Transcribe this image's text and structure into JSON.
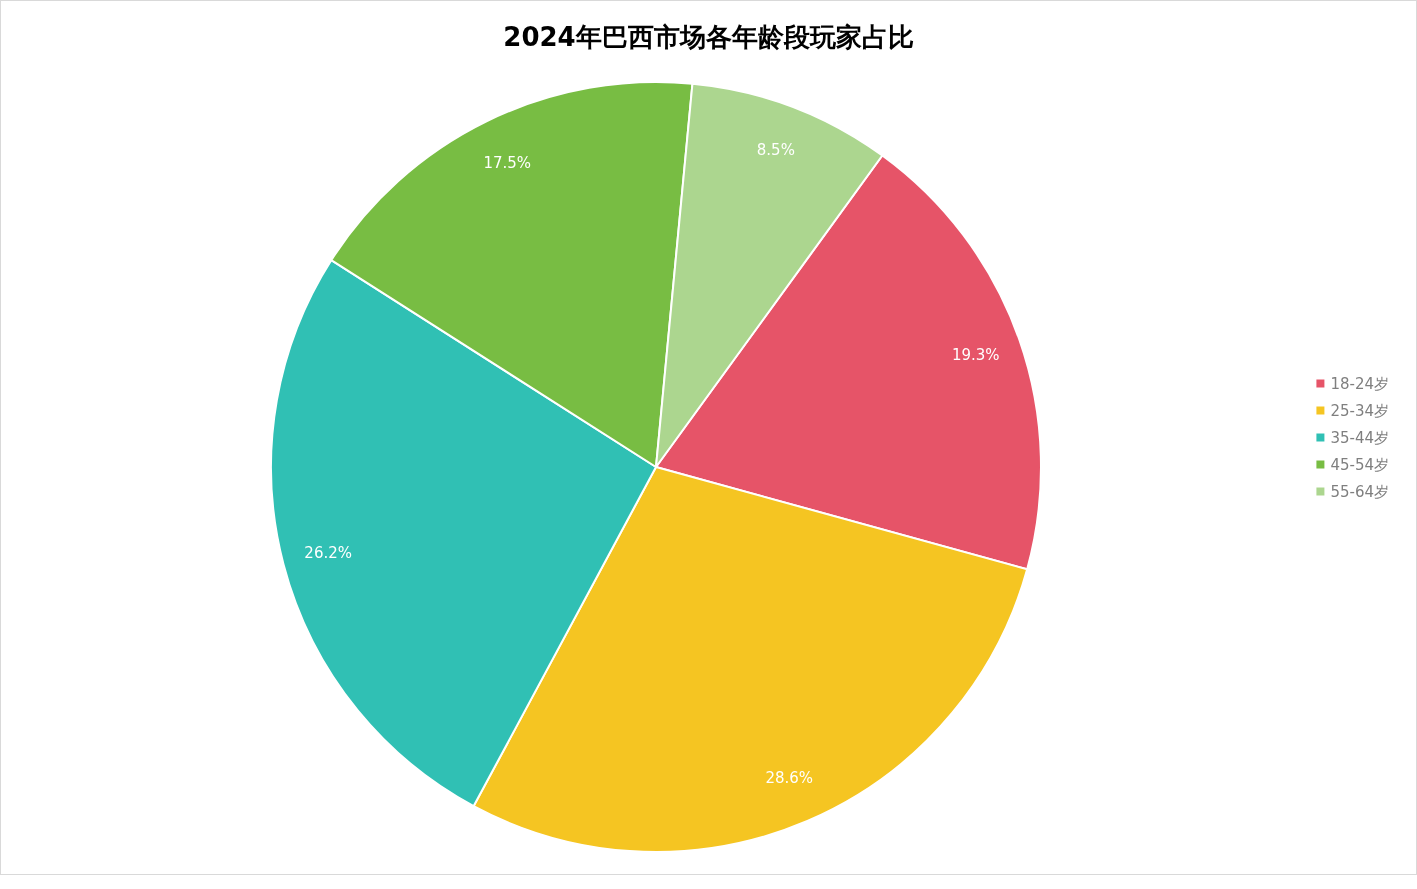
{
  "chart_data": {
    "type": "pie",
    "title": "2024年巴西市场各年龄段玩家占比",
    "categories": [
      "18-24岁",
      "25-34岁",
      "35-44岁",
      "45-54岁",
      "55-64岁"
    ],
    "values": [
      19.3,
      28.6,
      26.2,
      17.5,
      8.5
    ],
    "colors": [
      "#e65468",
      "#f5c522",
      "#30c0b4",
      "#78bd43",
      "#acd68f"
    ],
    "value_labels": [
      "19.3%",
      "28.6%",
      "26.2%",
      "17.5%",
      "8.5%"
    ],
    "legend": "right"
  }
}
